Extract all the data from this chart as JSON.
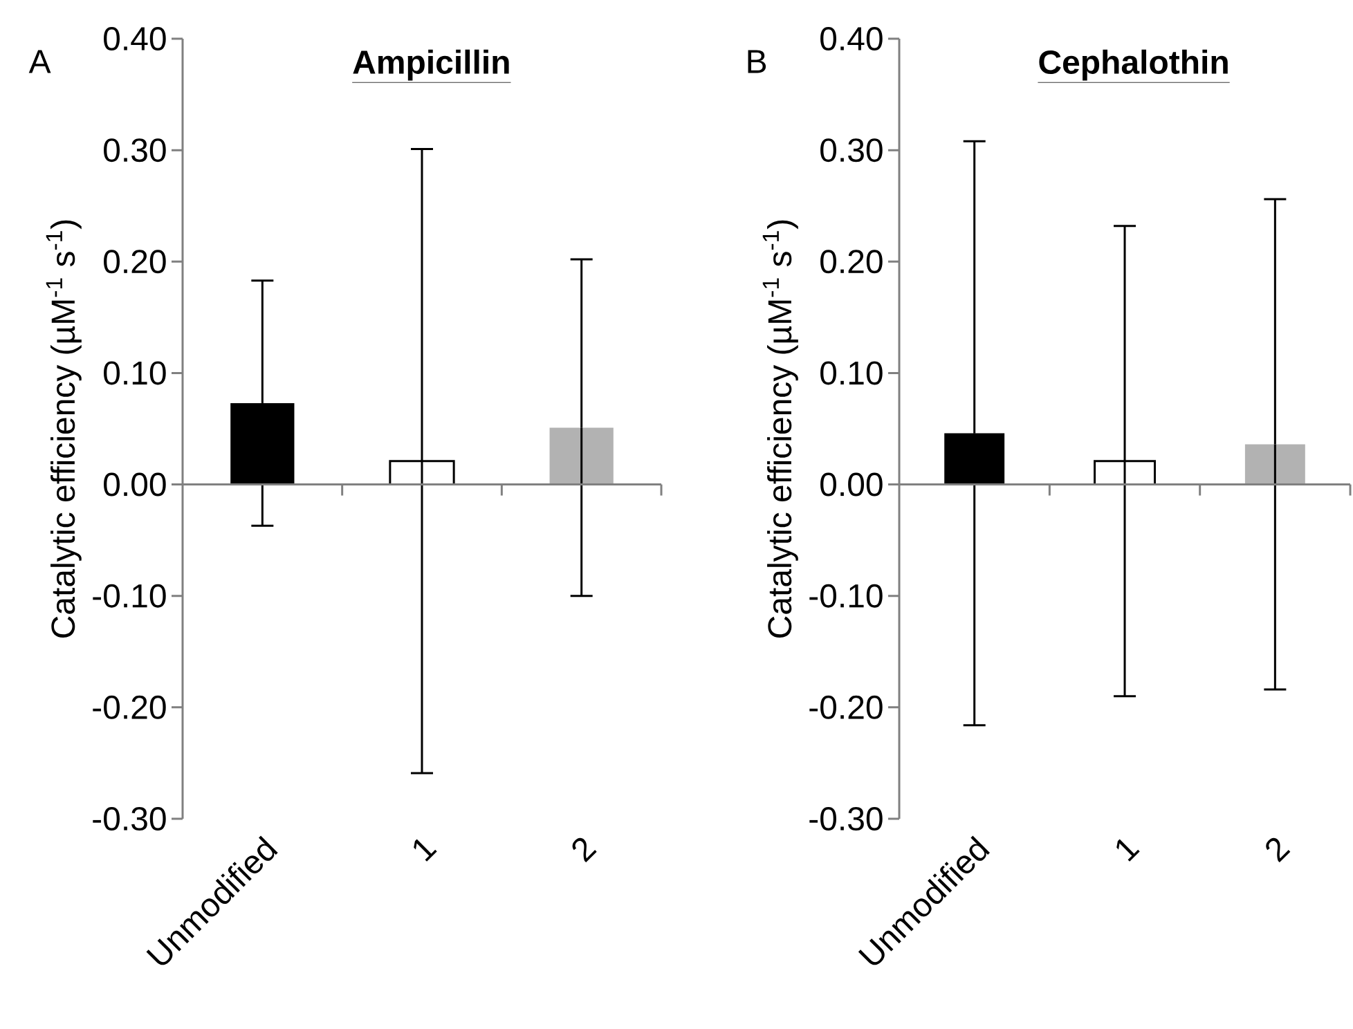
{
  "chart_data": [
    {
      "type": "bar",
      "title": "Ampicillin",
      "ylabel": "Catalytic efficiency (µM$^{-1}$ s$^{-1}$)",
      "annotations": [
        "A"
      ],
      "categories": [
        "Unmodified",
        "1",
        "2"
      ],
      "values": [
        0.073,
        0.021,
        0.051
      ],
      "errors": [
        0.11,
        0.28,
        0.151
      ],
      "colors": [
        "#000000",
        "#ffffff",
        "#b2b2b2"
      ],
      "ylim": [
        -0.3,
        0.4
      ],
      "yticks": [
        {
          "value": -0.3,
          "label": "-0.30"
        },
        {
          "value": -0.2,
          "label": "-0.20"
        },
        {
          "value": -0.1,
          "label": "-0.10"
        },
        {
          "value": 0,
          "label": "0.00"
        },
        {
          "value": 0.1,
          "label": "0.10"
        },
        {
          "value": 0.2,
          "label": "0.20"
        },
        {
          "value": 0.3,
          "label": "0.30"
        },
        {
          "value": 0.4,
          "label": "0.40"
        }
      ]
    },
    {
      "type": "bar",
      "title": "Cephalothin",
      "ylabel": "Catalytic efficiency (µM$^{-1}$ s$^{-1}$)",
      "annotations": [
        "B"
      ],
      "categories": [
        "Unmodified",
        "1",
        "2"
      ],
      "values": [
        0.046,
        0.021,
        0.036
      ],
      "errors": [
        0.262,
        0.211,
        0.22
      ],
      "colors": [
        "#000000",
        "#ffffff",
        "#b2b2b2"
      ],
      "ylim": [
        -0.3,
        0.4
      ],
      "yticks": [
        {
          "value": -0.3,
          "label": "-0.30"
        },
        {
          "value": -0.2,
          "label": "-0.20"
        },
        {
          "value": -0.1,
          "label": "-0.10"
        },
        {
          "value": 0,
          "label": "0.00"
        },
        {
          "value": 0.1,
          "label": "0.10"
        },
        {
          "value": 0.2,
          "label": "0.20"
        },
        {
          "value": 0.3,
          "label": "0.30"
        },
        {
          "value": 0.4,
          "label": "0.40"
        }
      ]
    }
  ]
}
